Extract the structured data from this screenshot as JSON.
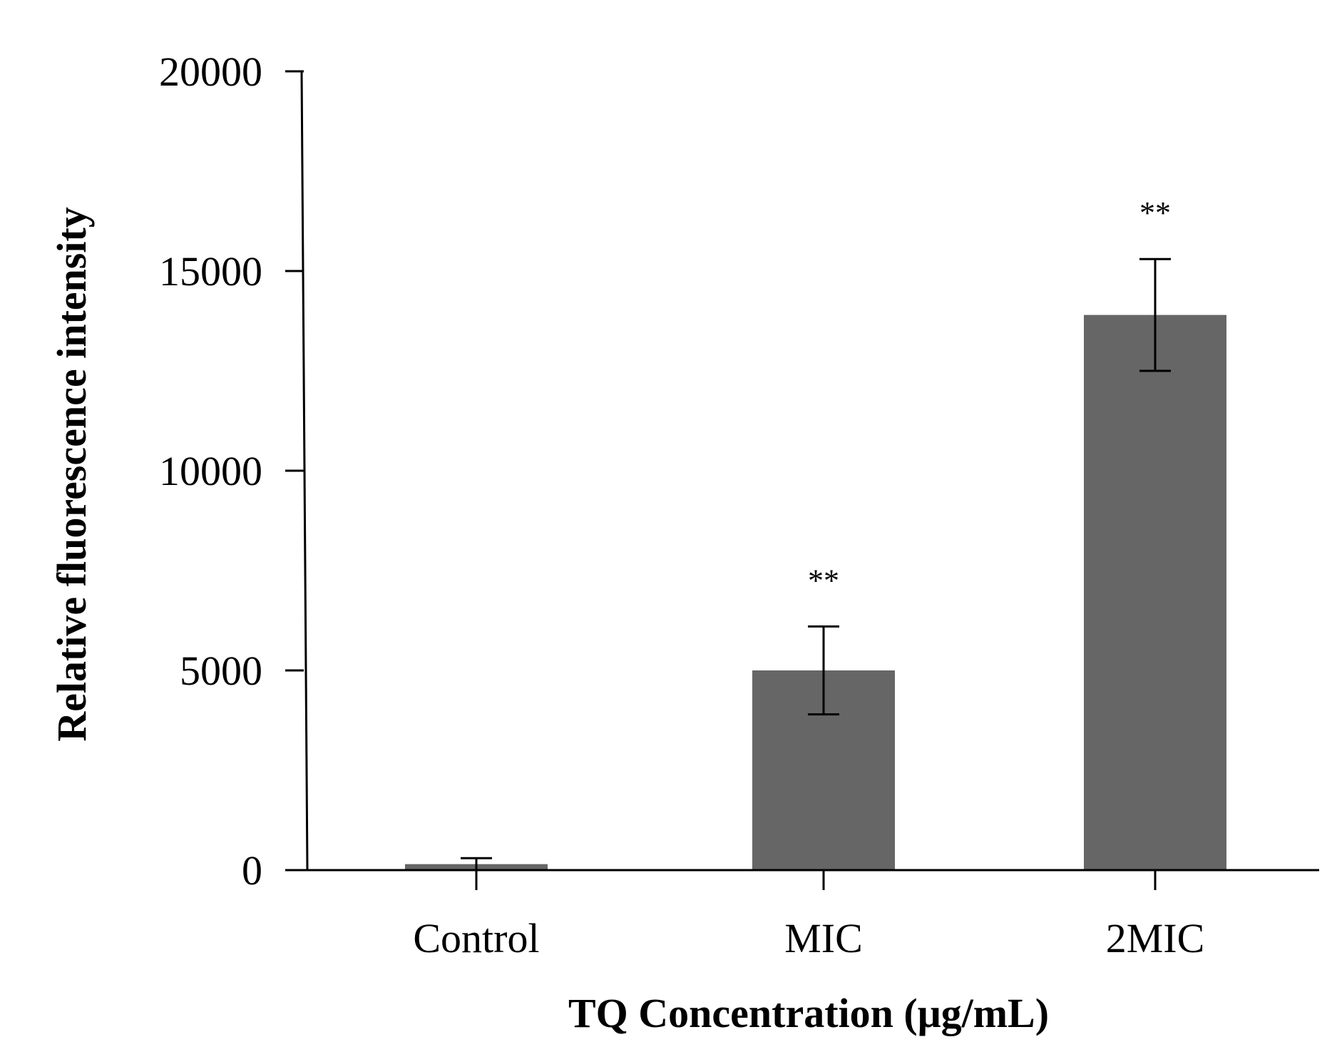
{
  "chart_data": {
    "type": "bar",
    "title": "",
    "xlabel": "TQ Concentration (μg/mL)",
    "ylabel": "Relative fluorescence intensity",
    "categories": [
      "Control",
      "MIC",
      "2MIC"
    ],
    "values": [
      150,
      5000,
      13900
    ],
    "errors": [
      150,
      1100,
      1400
    ],
    "annotations": [
      "",
      "**",
      "**"
    ],
    "ylim": [
      0,
      20000
    ],
    "yticks": [
      0,
      5000,
      10000,
      15000,
      20000
    ],
    "ytick_labels": [
      "0",
      "5000",
      "10000",
      "15000",
      "20000"
    ],
    "grid": false,
    "colors": {
      "bar": "#666666",
      "axis": "#000000",
      "error": "#000000"
    }
  }
}
